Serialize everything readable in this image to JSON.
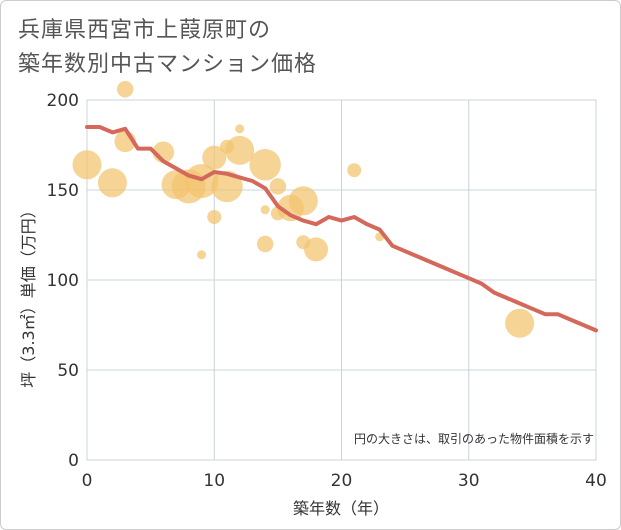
{
  "chart_data": {
    "type": "scatter",
    "title_lines": [
      "兵庫県西宮市上葭原町の",
      "築年数別中古マンション価格"
    ],
    "xlabel": "築年数（年）",
    "ylabel": "坪（3.3㎡）単価（万円）",
    "xlim": [
      0,
      40
    ],
    "ylim": [
      0,
      200
    ],
    "xticks": [
      0,
      10,
      20,
      30,
      40
    ],
    "yticks": [
      0,
      50,
      100,
      150,
      200
    ],
    "grid": true,
    "note": "円の大きさは、取引のあった物件面積を示す",
    "colors": {
      "bubble": "#f3c46d",
      "trend": "#d4685a",
      "grid": "#c8d4dc"
    },
    "bubbles": [
      {
        "x": 0,
        "y": 164,
        "size": 10
      },
      {
        "x": 2,
        "y": 154,
        "size": 10
      },
      {
        "x": 3,
        "y": 206,
        "size": 5
      },
      {
        "x": 3,
        "y": 177,
        "size": 7
      },
      {
        "x": 6,
        "y": 171,
        "size": 7
      },
      {
        "x": 7,
        "y": 153,
        "size": 10
      },
      {
        "x": 8,
        "y": 152,
        "size": 12
      },
      {
        "x": 9,
        "y": 155,
        "size": 12
      },
      {
        "x": 9,
        "y": 114,
        "size": 2
      },
      {
        "x": 10,
        "y": 168,
        "size": 8
      },
      {
        "x": 10,
        "y": 135,
        "size": 4
      },
      {
        "x": 11,
        "y": 174,
        "size": 4
      },
      {
        "x": 11,
        "y": 152,
        "size": 11
      },
      {
        "x": 12,
        "y": 184,
        "size": 2
      },
      {
        "x": 12,
        "y": 172,
        "size": 10
      },
      {
        "x": 14,
        "y": 164,
        "size": 11
      },
      {
        "x": 14,
        "y": 139,
        "size": 2
      },
      {
        "x": 14,
        "y": 120,
        "size": 5
      },
      {
        "x": 15,
        "y": 152,
        "size": 5
      },
      {
        "x": 15,
        "y": 137,
        "size": 4
      },
      {
        "x": 16,
        "y": 140,
        "size": 9
      },
      {
        "x": 17,
        "y": 144,
        "size": 10
      },
      {
        "x": 17,
        "y": 121,
        "size": 4
      },
      {
        "x": 18,
        "y": 117,
        "size": 8
      },
      {
        "x": 21,
        "y": 161,
        "size": 4
      },
      {
        "x": 23,
        "y": 124,
        "size": 2
      },
      {
        "x": 34,
        "y": 76,
        "size": 10
      }
    ],
    "trend": {
      "x": [
        0,
        1,
        2,
        3,
        4,
        5,
        6,
        7,
        8,
        9,
        10,
        11,
        12,
        13,
        14,
        15,
        16,
        17,
        18,
        19,
        20,
        21,
        22,
        23,
        24,
        25,
        26,
        27,
        28,
        29,
        30,
        31,
        32,
        33,
        34,
        35,
        36,
        37,
        38,
        39,
        40
      ],
      "y": [
        185,
        185,
        182,
        184,
        173,
        173,
        166,
        162,
        158,
        156,
        160,
        159,
        157,
        155,
        151,
        141,
        136,
        133,
        131,
        135,
        133,
        135,
        131,
        128,
        119,
        116,
        113,
        110,
        107,
        104,
        101,
        98,
        93,
        90,
        87,
        84,
        81,
        81,
        78,
        75,
        72
      ]
    }
  }
}
